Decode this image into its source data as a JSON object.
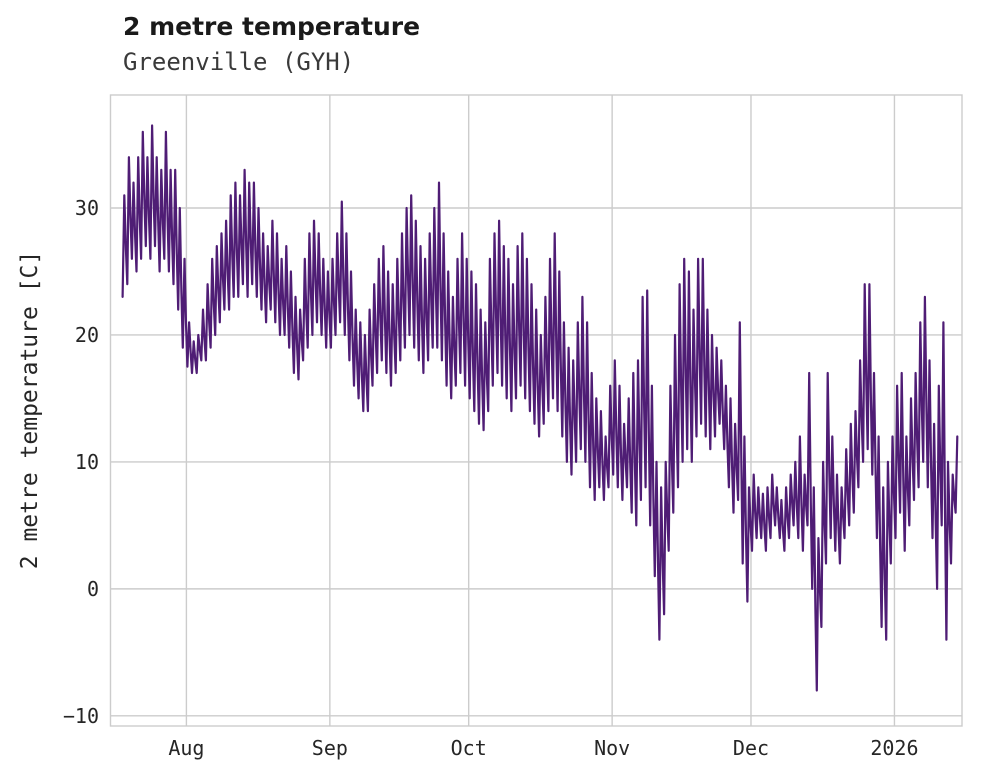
{
  "chart_data": {
    "type": "line",
    "title": "2 metre temperature",
    "subtitle": "Greenville (GYH)",
    "ylabel": "2 metre temperature [C]",
    "line_color": "#4f1d75",
    "grid_color": "#cccccc",
    "background": "#ffffff",
    "legend": "none",
    "grid": true,
    "x_domain": [
      -2.4,
      181.6
    ],
    "y_domain": [
      -10.8,
      38.9
    ],
    "x_ticks": [
      {
        "day": 14,
        "label": "Aug"
      },
      {
        "day": 45,
        "label": "Sep"
      },
      {
        "day": 75,
        "label": "Oct"
      },
      {
        "day": 106,
        "label": "Nov"
      },
      {
        "day": 136,
        "label": "Dec"
      },
      {
        "day": 167,
        "label": "2026"
      }
    ],
    "y_ticks": [
      {
        "value": -10,
        "label": "−10"
      },
      {
        "value": 0,
        "label": "0"
      },
      {
        "value": 10,
        "label": "10"
      },
      {
        "value": 20,
        "label": "20"
      },
      {
        "value": 30,
        "label": "30"
      }
    ],
    "series": [
      {
        "name": "2 metre temperature [C]",
        "x_unit": "days (day 0 ≈ mid-July, ticks mark month starts)",
        "daily_min": [
          23,
          24,
          26,
          25,
          26,
          27,
          26,
          27,
          25,
          26,
          25,
          24,
          22,
          19,
          17.5,
          17,
          17,
          18,
          18,
          19,
          20,
          21,
          22,
          22,
          23,
          23,
          24,
          23,
          24,
          23,
          22,
          21,
          22,
          21,
          20,
          20,
          19,
          17,
          16.5,
          18,
          19,
          20,
          21,
          20,
          19,
          19,
          20,
          21,
          20,
          18,
          16,
          15,
          14,
          14,
          16,
          17,
          18,
          17,
          16,
          17,
          18,
          19,
          20,
          19,
          18,
          17,
          18,
          19,
          19,
          18,
          16,
          15,
          16,
          17,
          16,
          15,
          14,
          13,
          12.5,
          14,
          16,
          17,
          16,
          15,
          14,
          15,
          16,
          15,
          14,
          13,
          12,
          13,
          14,
          15,
          14,
          12,
          10,
          9,
          10,
          11,
          10,
          8,
          7,
          8,
          7,
          8,
          9,
          8,
          7,
          8,
          6,
          5,
          7,
          8,
          5,
          1,
          -4,
          -2,
          3,
          6,
          8,
          10,
          11,
          10,
          12,
          13,
          12,
          11,
          12,
          13,
          11,
          8,
          6,
          7,
          2,
          -1,
          3,
          4,
          4,
          3,
          4,
          5,
          4,
          3,
          4,
          5,
          4,
          3,
          5,
          0,
          -8,
          -3,
          2,
          4,
          3,
          2,
          4,
          5,
          6,
          8,
          10,
          11,
          9,
          4,
          -3,
          -4,
          2,
          4,
          6,
          3,
          5,
          7,
          8,
          10,
          8,
          4,
          0,
          5,
          -4,
          2,
          6
        ],
        "daily_max": [
          31,
          34,
          32,
          34,
          36,
          34,
          36.5,
          34,
          33,
          36,
          33,
          33,
          30,
          26,
          21,
          19.5,
          20,
          22,
          24,
          26,
          27,
          28,
          29,
          31,
          32,
          31,
          33,
          32,
          32,
          30,
          28,
          27,
          29,
          28,
          26,
          27,
          25,
          23,
          22,
          26,
          28,
          29,
          28,
          26,
          25,
          26,
          28,
          30.5,
          28,
          25,
          22,
          21,
          20,
          22,
          24,
          26,
          27,
          25,
          24,
          26,
          28,
          30,
          31,
          29,
          27,
          26,
          28,
          30,
          32,
          28,
          25,
          23,
          26,
          28,
          26,
          25,
          24,
          22,
          21,
          26,
          28,
          29,
          27,
          26,
          24,
          27,
          28,
          26,
          24,
          22,
          20,
          23,
          26,
          28,
          25,
          21,
          19,
          18,
          21,
          23,
          21,
          17,
          15,
          14,
          12,
          16,
          18,
          16,
          13,
          15,
          17,
          18,
          23,
          23.5,
          16,
          10,
          8,
          10,
          16,
          20,
          24,
          26,
          25,
          22,
          26,
          26,
          22,
          20,
          19,
          18,
          16,
          15,
          13,
          21,
          12,
          8,
          9,
          8,
          7.5,
          8,
          9,
          8,
          7,
          8,
          9,
          10,
          12,
          9,
          17,
          8,
          4,
          10,
          17,
          12,
          9,
          8,
          11,
          13,
          14,
          18,
          24,
          24,
          17,
          12,
          8,
          10,
          12,
          16,
          17,
          12,
          15,
          17,
          21,
          23,
          18,
          13,
          16,
          21,
          10,
          9,
          12
        ]
      }
    ]
  }
}
